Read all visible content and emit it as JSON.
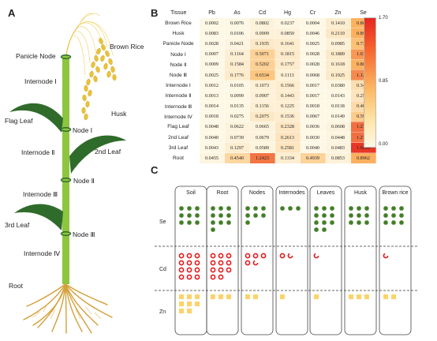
{
  "panels": {
    "a": "A",
    "b": "B",
    "c": "C"
  },
  "plant_labels": {
    "brown_rice": "Brown Rice",
    "panicle_node": "Panicle Node",
    "husk": "Husk",
    "internode1": "Internode Ⅰ",
    "flag_leaf": "Flag Leaf",
    "node1": "Node Ⅰ",
    "internode2": "Internode Ⅱ",
    "second_leaf": "2nd Leaf",
    "node2": "Node Ⅱ",
    "internode3": "Internode Ⅲ",
    "third_leaf": "3rd Leaf",
    "node3": "Node Ⅲ",
    "internode4": "Internode Ⅳ",
    "root": "Root"
  },
  "chart_data": {
    "type": "heatmap",
    "corner_label": "Tissue",
    "columns": [
      "Pb",
      "As",
      "Cd",
      "Hg",
      "Cr",
      "Zn",
      "Se"
    ],
    "rows": [
      {
        "tissue": "Brown Rice",
        "values": [
          "0.0002",
          "0.0076",
          "0.0802",
          "0.0237",
          "0.0004",
          "0.1410",
          "0.8878"
        ]
      },
      {
        "tissue": "Husk",
        "values": [
          "0.0083",
          "0.0106",
          "0.0909",
          "0.0850",
          "0.0046",
          "0.2110",
          "0.8994"
        ]
      },
      {
        "tissue": "Panicle Node",
        "values": [
          "0.0028",
          "0.0421",
          "0.1935",
          "0.1641",
          "0.0025",
          "0.0985",
          "0.7335"
        ]
      },
      {
        "tissue": "Node Ⅰ",
        "values": [
          "0.0007",
          "0.1164",
          "0.5071",
          "0.1815",
          "0.0028",
          "0.1889",
          "1.0349"
        ]
      },
      {
        "tissue": "Node Ⅱ",
        "values": [
          "0.0009",
          "0.1584",
          "0.5202",
          "0.1757",
          "0.0028",
          "0.1618",
          "0.8899"
        ]
      },
      {
        "tissue": "Node Ⅲ",
        "values": [
          "0.0025",
          "0.1776",
          "0.6534",
          "0.1113",
          "0.0068",
          "0.1925",
          "1.1262"
        ]
      },
      {
        "tissue": "Internode Ⅰ",
        "values": [
          "0.0012",
          "0.0105",
          "0.1073",
          "0.1566",
          "0.0017",
          "0.0380",
          "0.3483"
        ]
      },
      {
        "tissue": "Internode Ⅱ",
        "values": [
          "0.0013",
          "0.0099",
          "0.0907",
          "0.1443",
          "0.0017",
          "0.0143",
          "0.2590"
        ]
      },
      {
        "tissue": "Internode Ⅲ",
        "values": [
          "0.0014",
          "0.0135",
          "0.1156",
          "0.1225",
          "0.0018",
          "0.0118",
          "0.4039"
        ]
      },
      {
        "tissue": "Internode Ⅳ",
        "values": [
          "0.0018",
          "0.0275",
          "0.2075",
          "0.1536",
          "0.0067",
          "0.0149",
          "0.5997"
        ]
      },
      {
        "tissue": "Flag Leaf",
        "values": [
          "0.0048",
          "0.0622",
          "0.0665",
          "0.2328",
          "0.0036",
          "0.0608",
          "1.2730"
        ]
      },
      {
        "tissue": "2nd Leaf",
        "values": [
          "0.0040",
          "0.0739",
          "0.0679",
          "0.2613",
          "0.0030",
          "0.0448",
          "1.2702"
        ]
      },
      {
        "tissue": "3rd Leaf",
        "values": [
          "0.0043",
          "0.1297",
          "0.0589",
          "0.2581",
          "0.0040",
          "0.0483",
          "1.6010"
        ]
      },
      {
        "tissue": "Root",
        "values": [
          "0.0455",
          "0.4540",
          "1.2423",
          "0.1334",
          "0.4939",
          "0.0853",
          "0.8962"
        ]
      }
    ],
    "colorbar": {
      "min": 0,
      "max": 1.7,
      "ticks": [
        "1.70",
        "0.85",
        "0.00"
      ],
      "low_color": "#fdf8e6",
      "mid_color": "#fdb863",
      "high_color": "#e5261f"
    }
  },
  "panel_c": {
    "columns": [
      "Soil",
      "Root",
      "Nodes",
      "Internodes",
      "Leaves",
      "Husk",
      "Brown rice"
    ],
    "rows": [
      "Se",
      "Cd",
      "Zn"
    ],
    "counts": {
      "Se": [
        9,
        10,
        7,
        3,
        11,
        9,
        9
      ],
      "Cd": [
        12,
        11,
        5,
        2,
        1,
        0,
        1
      ],
      "Zn": [
        8,
        3,
        2,
        1,
        1,
        3,
        2
      ]
    },
    "colors": {
      "se": "#3d7a22",
      "cd": "#e31a1c",
      "zn": "#fbd36a",
      "stem": "#8cc63f",
      "grain": "#e8c23a"
    }
  }
}
